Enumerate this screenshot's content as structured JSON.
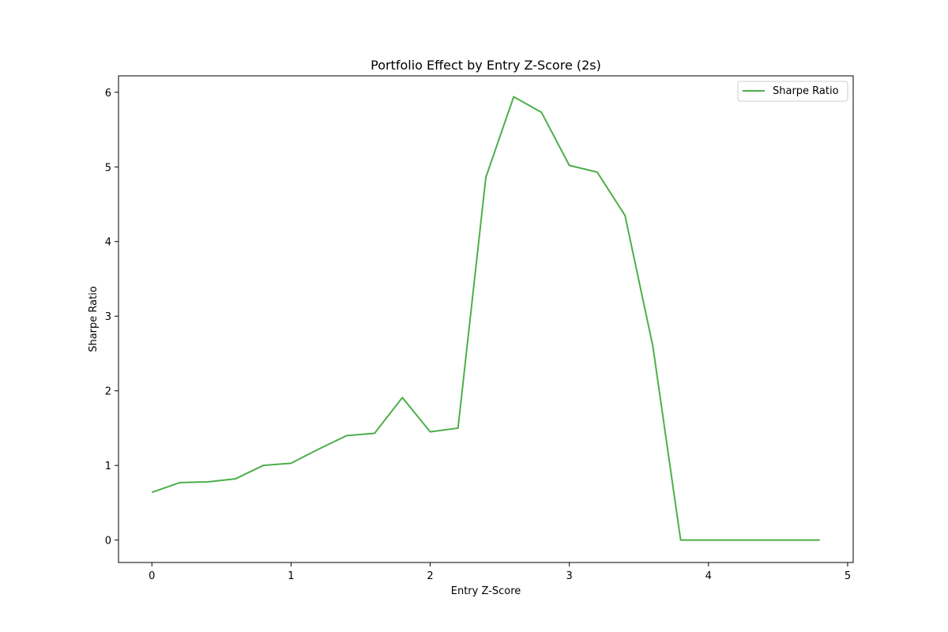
{
  "chart_data": {
    "type": "line",
    "title": "Portfolio Effect by Entry Z-Score (2s)",
    "xlabel": "Entry Z-Score",
    "ylabel": "Sharpe Ratio",
    "xlim": [
      -0.24,
      5.04
    ],
    "ylim": [
      -0.3,
      6.22
    ],
    "xticks": [
      0,
      1,
      2,
      3,
      4,
      5
    ],
    "yticks": [
      0,
      1,
      2,
      3,
      4,
      5,
      6
    ],
    "grid": false,
    "legend_position": "top-right",
    "series": [
      {
        "name": "Sharpe Ratio",
        "color": "#4daf4a",
        "x": [
          0,
          0.2,
          0.4,
          0.6,
          0.8,
          1.0,
          1.2,
          1.4,
          1.6,
          1.8,
          2.0,
          2.2,
          2.4,
          2.6,
          2.8,
          3.0,
          3.2,
          3.4,
          3.6,
          3.8,
          4.0,
          4.2,
          4.4,
          4.6,
          4.8
        ],
        "y": [
          0.64,
          0.77,
          0.78,
          0.82,
          1.0,
          1.03,
          1.22,
          1.4,
          1.43,
          1.91,
          1.45,
          1.5,
          4.86,
          5.94,
          5.73,
          5.02,
          4.93,
          4.35,
          2.6,
          0.0,
          0.0,
          0.0,
          0.0,
          0.0,
          0.0
        ]
      }
    ]
  }
}
